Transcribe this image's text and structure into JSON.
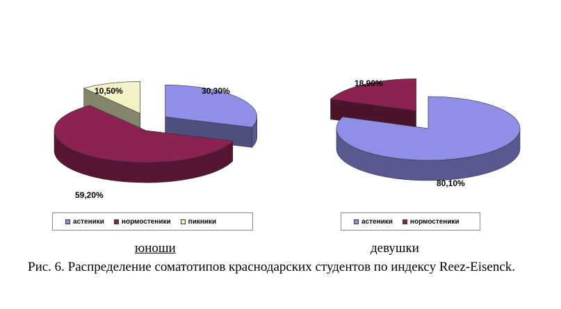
{
  "chart_data": [
    {
      "type": "pie",
      "title": "",
      "group_label": "юноши",
      "slices": [
        {
          "name": "астеники",
          "value": 30.3,
          "label": "30,30%",
          "color": "#8f8fe8"
        },
        {
          "name": "нормостеники",
          "value": 59.2,
          "label": "59,20%",
          "color": "#8b2252"
        },
        {
          "name": "пикники",
          "value": 10.5,
          "label": "10,50%",
          "color": "#f2f2c6"
        }
      ],
      "legend": [
        "астеники",
        "нормостеники",
        "пикники"
      ],
      "legend_position": "bottom"
    },
    {
      "type": "pie",
      "title": "",
      "group_label": "девушки",
      "slices": [
        {
          "name": "астеники",
          "value": 80.1,
          "label": "80,10%",
          "color": "#8f8fe8"
        },
        {
          "name": "нормостеники",
          "value": 18.9,
          "label": "18,90%",
          "color": "#8b2252"
        }
      ],
      "legend": [
        "астеники",
        "нормостеники"
      ],
      "legend_position": "bottom"
    }
  ],
  "caption": "Рис. 6. Распределение соматотипов краснодарских студентов по индексу Reez-Eisenck."
}
